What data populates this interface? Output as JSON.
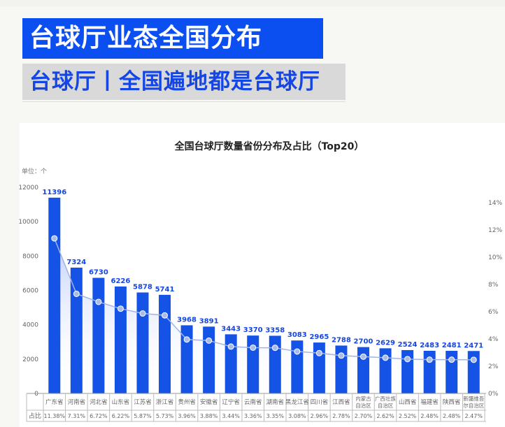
{
  "header": {
    "title": "台球厅业态全国分布",
    "subtitle": "台球厅丨全国遍地都是台球厅"
  },
  "colors": {
    "accent_blue": "#0b4ff0",
    "subtitle_bg": "#d9d9d9",
    "subtitle_text": "#1446e6",
    "bar": "#1552e6",
    "line": "#9fb3e8"
  },
  "chart_data": {
    "type": "bar",
    "title": "全国台球厅数量省份分布及占比（Top20）",
    "ylabel": "单位：个",
    "ylim": [
      0,
      12000
    ],
    "y_ticks": [
      "0",
      "2000",
      "4000",
      "6000",
      "8000",
      "10000",
      "12000"
    ],
    "y2lim": [
      0,
      14
    ],
    "y2_ticks": [
      "0%",
      "2%",
      "4%",
      "6%",
      "8%",
      "10%",
      "12%",
      "14%"
    ],
    "table_row_label": "占比",
    "categories": [
      "广东省",
      "河南省",
      "河北省",
      "山东省",
      "江苏省",
      "浙江省",
      "贵州省",
      "安徽省",
      "辽宁省",
      "云南省",
      "湖南省",
      "黑龙江省",
      "四川省",
      "江西省",
      "内蒙古自治区",
      "广西壮族自治区",
      "山西省",
      "福建省",
      "陕西省",
      "新疆维吾尔自治区"
    ],
    "category_lines": [
      [
        "广东省"
      ],
      [
        "河南省"
      ],
      [
        "河北省"
      ],
      [
        "山东省"
      ],
      [
        "江苏省"
      ],
      [
        "浙江省"
      ],
      [
        "贵州省"
      ],
      [
        "安徽省"
      ],
      [
        "辽宁省"
      ],
      [
        "云南省"
      ],
      [
        "湖南省"
      ],
      [
        "黑龙江省"
      ],
      [
        "四川省"
      ],
      [
        "江西省"
      ],
      [
        "内蒙古",
        "自治区"
      ],
      [
        "广西壮族",
        "自治区"
      ],
      [
        "山西省"
      ],
      [
        "福建省"
      ],
      [
        "陕西省"
      ],
      [
        "新疆维吾",
        "尔自治区"
      ]
    ],
    "series": [
      {
        "values": [
          11396,
          7324,
          6730,
          6226,
          5878,
          5741,
          3968,
          3891,
          3443,
          3370,
          3358,
          3083,
          2965,
          2788,
          2700,
          2629,
          2524,
          2483,
          2481,
          2471
        ]
      },
      {
        "axis": "right",
        "values": [
          11.38,
          7.31,
          6.72,
          6.22,
          5.87,
          5.73,
          3.96,
          3.88,
          3.44,
          3.36,
          3.35,
          3.08,
          2.96,
          2.78,
          2.7,
          2.62,
          2.52,
          2.48,
          2.48,
          2.47
        ]
      }
    ],
    "share_labels": [
      "11.38%",
      "7.31%",
      "6.72%",
      "6.22%",
      "5.87%",
      "5.73%",
      "3.96%",
      "3.88%",
      "3.44%",
      "3.36%",
      "3.35%",
      "3.08%",
      "2.96%",
      "2.78%",
      "2.70%",
      "2.62%",
      "2.52%",
      "2.48%",
      "2.48%",
      "2.47%"
    ],
    "grid": false
  }
}
